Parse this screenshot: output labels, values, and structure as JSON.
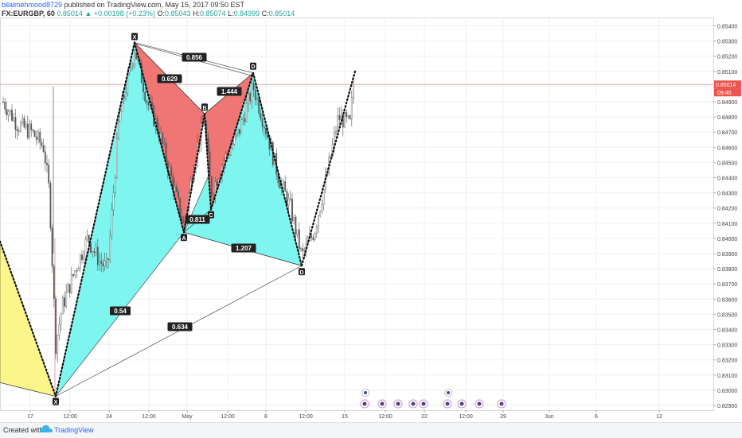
{
  "header": {
    "author": "bilalmehmood8729",
    "published": "published on TradingView.com, May 15, 2017 09:50 EST",
    "symbol": "FX:EURGBP, 60",
    "last": "0.85014",
    "change": "+0.00198 (+0.23%)",
    "o_label": "O:",
    "o_value": "0.85043",
    "h_label": "H:",
    "h_value": "0.85074",
    "l_label": "L:",
    "l_value": "0.84999",
    "c_label": "C:",
    "c_value": "0.85014"
  },
  "footer": {
    "created_with": "Created with",
    "brand": "TradingView"
  },
  "colors": {
    "cyan_fill": "#7ff5f0",
    "red_fill": "#f07575",
    "yellow_fill": "#fbf58a",
    "price_line": "#e57373",
    "price_tag": "#ef5350",
    "grid": "#eef0f3",
    "candle": "#555555",
    "point_label_bg": "#222222"
  },
  "chart_data": {
    "type": "line",
    "title": "",
    "xlabel": "",
    "ylabel": "",
    "ylim": [
      0.8285,
      0.855
    ],
    "y_ticks": [
      "0.85400",
      "0.85300",
      "0.85200",
      "0.85100",
      "0.85000",
      "0.84900",
      "0.84800",
      "0.84700",
      "0.84600",
      "0.84500",
      "0.84400",
      "0.84300",
      "0.84200",
      "0.84100",
      "0.84000",
      "0.83900",
      "0.83800",
      "0.83700",
      "0.83600",
      "0.83500",
      "0.83400",
      "0.83300",
      "0.83200",
      "0.83100",
      "0.83000",
      "0.82900"
    ],
    "x_ticks": [
      "17",
      "12:00",
      "24",
      "12:00",
      "May",
      "12:00",
      "8",
      "12:00",
      "15",
      "12:00",
      "22",
      "12:00",
      "29",
      "Jun",
      "6",
      "12"
    ],
    "current_price": {
      "value": 0.85014,
      "label": "0.85014",
      "countdown": "09:40"
    },
    "series": [
      {
        "x": [
          "Apr 17",
          "Apr 19",
          "Apr 21",
          "Apr 24",
          "Apr 26",
          "Apr 28",
          "May 1",
          "May 3",
          "May 5",
          "May 8",
          "May 10",
          "May 12",
          "May 15"
        ],
        "values": [
          0.8415,
          0.8452,
          0.8296,
          0.84,
          0.846,
          0.853,
          0.841,
          0.848,
          0.842,
          0.8505,
          0.844,
          0.8385,
          0.8495
        ]
      }
    ],
    "patterns": [
      {
        "points": [
          {
            "name": "X",
            "value": 0.8296
          },
          {
            "name": "X",
            "value": 0.8529
          },
          {
            "name": "A",
            "value": 0.8404
          },
          {
            "name": "B",
            "value": 0.8482
          },
          {
            "name": "C",
            "value": 0.8419
          },
          {
            "name": "D",
            "value": 0.8509
          },
          {
            "name": "D",
            "value": 0.8382
          }
        ],
        "ratios": [
          "0.54",
          "0.629",
          "0.856",
          "0.811",
          "1.444",
          "1.207",
          "0.634"
        ]
      }
    ]
  }
}
